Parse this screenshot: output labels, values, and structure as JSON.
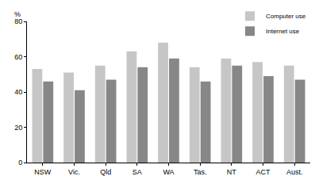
{
  "chart_data": {
    "type": "bar",
    "ylabel": "%",
    "categories": [
      "NSW",
      "Vic.",
      "Qld",
      "SA",
      "WA",
      "Tas.",
      "NT",
      "ACT",
      "Aust."
    ],
    "series": [
      {
        "name": "Computer use",
        "color": "#c6c6c6",
        "values": [
          53,
          51,
          55,
          63,
          68,
          54,
          59,
          57,
          55
        ]
      },
      {
        "name": "Internet use",
        "color": "#878787",
        "values": [
          46,
          41,
          47,
          54,
          59,
          46,
          55,
          49,
          47
        ]
      }
    ],
    "ylim": [
      0,
      80
    ],
    "yticks": [
      0,
      20,
      40,
      60,
      80
    ],
    "grid": true,
    "legend": "top right"
  }
}
